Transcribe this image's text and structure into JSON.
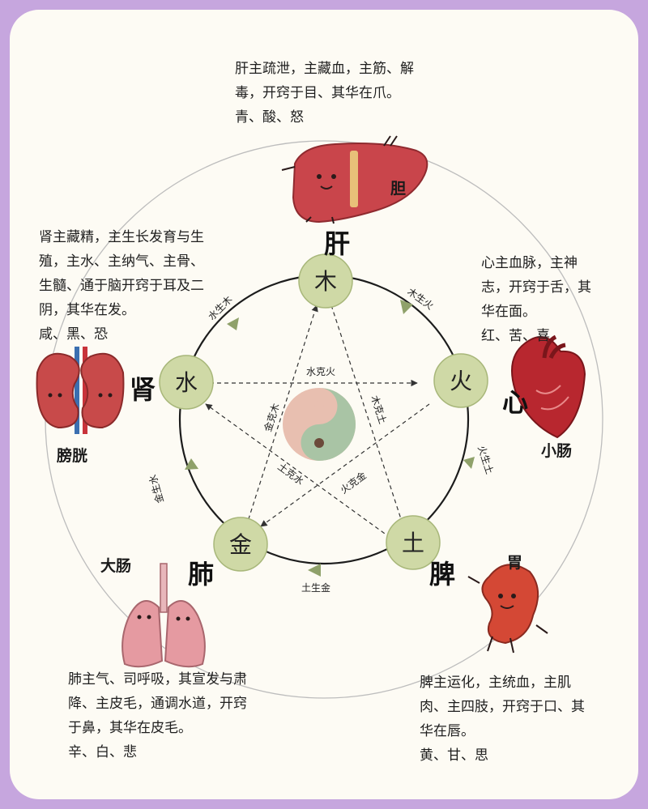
{
  "organs": {
    "liver": {
      "name": "肝",
      "fu": "胆",
      "desc": "肝主疏泄，主藏血，主筋、解\n毒，开窍于目、其华在爪。\n青、酸、怒"
    },
    "heart": {
      "name": "心",
      "fu": "小肠",
      "desc": "心主血脉，主神\n志，开窍于舌，其\n华在面。\n红、苦、喜"
    },
    "spleen": {
      "name": "脾",
      "fu": "胃",
      "desc": "脾主运化，主统血，主肌\n肉、主四肢，开窍于口、其\n华在唇。\n黄、甘、思"
    },
    "lung": {
      "name": "肺",
      "fu": "大肠",
      "desc": "肺主气、司呼吸，其宣发与肃\n降、主皮毛，通调水道，开窍\n于鼻，其华在皮毛。\n辛、白、悲"
    },
    "kidney": {
      "name": "肾",
      "fu": "膀胱",
      "desc": "肾主藏精，主生长发育与生\n殖，主水、主纳气、主骨、\n生髓、通于脑开窍于耳及二\n阴，其华在发。\n咸、黑、恐"
    }
  },
  "elements": {
    "wood": "木",
    "fire": "火",
    "earth": "土",
    "metal": "金",
    "water": "水"
  },
  "generating": {
    "wood_fire": "木生火",
    "fire_earth": "火生土",
    "earth_metal": "土生金",
    "metal_water": "金生水",
    "water_wood": "水生木"
  },
  "controlling": {
    "water_fire": "水克火",
    "wood_earth": "木克土",
    "fire_metal": "火克金",
    "earth_water": "土克水",
    "metal_wood": "金克木"
  },
  "colors": {
    "node": "#cfd9a6",
    "node_border": "#a8b77a",
    "arrow": "#8fa16a",
    "liver": "#c9454b",
    "heart": "#b8272f",
    "kidney": "#c84a4a",
    "lung": "#e59aa1",
    "spleen": "#d44835"
  }
}
